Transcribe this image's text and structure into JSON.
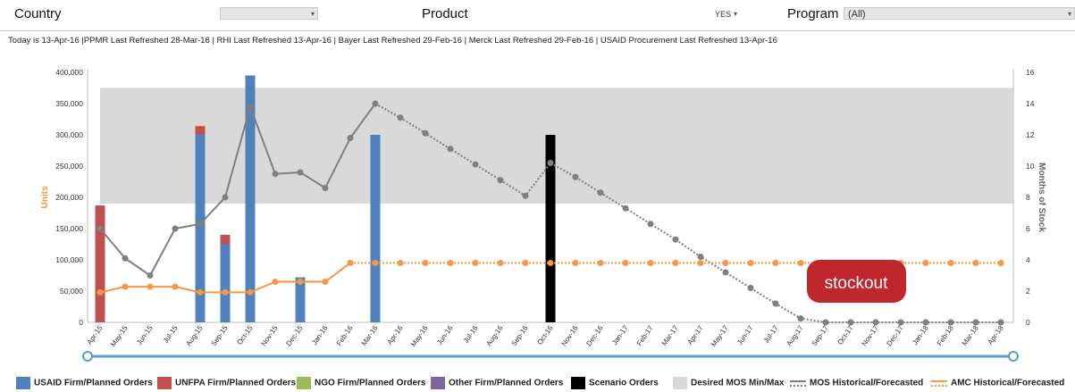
{
  "filters": {
    "country_label": "Country",
    "country_value": "",
    "product_label": "Product",
    "product_value": "YES",
    "program_label": "Program",
    "program_value": "(All)"
  },
  "refresh_text": "Today is 13-Apr-16 |PPMR Last Refreshed 28-Mar-16 | RHI Last Refreshed 13-Apr-16 | Bayer Last Refreshed 29-Feb-16 | Merck Last Refreshed 29-Feb-16 | USAID Procurement Last Refreshed 13-Apr-16",
  "colors": {
    "usaid": "#4f81bd",
    "unfpa": "#c0504d",
    "ngo": "#9bbb59",
    "other": "#8064a2",
    "scenario": "#000000",
    "mos_band": "#d9d9d9",
    "mos_line": "#7f7f7f",
    "amc_line": "#f79646",
    "stockout": "#c0272d",
    "axis_title": "#f79646",
    "scroll": "#5b9bd5"
  },
  "stockout_label": "stockout",
  "legend": [
    {
      "key": "usaid",
      "label": "USAID Firm/Planned Orders",
      "kind": "box"
    },
    {
      "key": "unfpa",
      "label": "UNFPA Firm/Planned Orders",
      "kind": "box"
    },
    {
      "key": "ngo",
      "label": "NGO Firm/Planned Orders",
      "kind": "box"
    },
    {
      "key": "other",
      "label": "Other Firm/Planned Orders",
      "kind": "box"
    },
    {
      "key": "scenario",
      "label": "Scenario Orders",
      "kind": "box"
    },
    {
      "key": "mos_band",
      "label": "Desired MOS Min/Max",
      "kind": "box"
    },
    {
      "key": "mos_line",
      "label": "MOS Historical/Forecasted",
      "kind": "line"
    },
    {
      "key": "amc_line",
      "label": "AMC Historical/Forecasted",
      "kind": "line"
    }
  ],
  "chart_data": {
    "type": "bar",
    "ylabel": "Units",
    "y2label": "Months of Stock",
    "ylim": [
      0,
      400000
    ],
    "y2lim": [
      0,
      16
    ],
    "yticks": [
      0,
      50000,
      100000,
      150000,
      200000,
      250000,
      300000,
      350000,
      400000
    ],
    "ytick_labels": [
      "0",
      "50,000",
      "100,000",
      "150,000",
      "200,000",
      "250,000",
      "300,000",
      "350,000",
      "400,000"
    ],
    "y2ticks": [
      0,
      2,
      4,
      6,
      8,
      10,
      12,
      14,
      16
    ],
    "y2tick_labels": [
      "0",
      "2",
      "4",
      "6",
      "8",
      "10",
      "12",
      "14",
      "16"
    ],
    "categories": [
      "Apr-15",
      "May-15",
      "Jun-15",
      "Jul-15",
      "Aug-15",
      "Sep-15",
      "Oct-15",
      "Nov-15",
      "Dec-15",
      "Jan-16",
      "Feb-16",
      "Mar-16",
      "Apr-16",
      "May-16",
      "Jun-16",
      "Jul-16",
      "Aug-16",
      "Sep-16",
      "Oct-16",
      "Nov-16",
      "Dec-16",
      "Jan-17",
      "Feb-17",
      "Mar-17",
      "Apr-17",
      "May-17",
      "Jun-17",
      "Jul-17",
      "Aug-17",
      "Sep-17",
      "Oct-17",
      "Nov-17",
      "Dec-17",
      "Jan-18",
      "Feb-18",
      "Mar-18",
      "Apr-18"
    ],
    "desired_mos_band": [
      7.6,
      15.0
    ],
    "series": [
      {
        "name": "USAID Firm/Planned Orders",
        "key": "usaid",
        "kind": "bar",
        "values": [
          0,
          0,
          0,
          0,
          300000,
          125000,
          395000,
          0,
          72000,
          0,
          0,
          300000,
          0,
          0,
          0,
          0,
          0,
          0,
          0,
          0,
          0,
          0,
          0,
          0,
          0,
          0,
          0,
          0,
          0,
          0,
          0,
          0,
          0,
          0,
          0,
          0,
          0
        ]
      },
      {
        "name": "UNFPA Firm/Planned Orders",
        "key": "unfpa",
        "kind": "bar",
        "values": [
          187000,
          0,
          0,
          0,
          14000,
          15000,
          0,
          0,
          0,
          0,
          0,
          0,
          0,
          0,
          0,
          0,
          0,
          0,
          0,
          0,
          0,
          0,
          0,
          0,
          0,
          0,
          0,
          0,
          0,
          0,
          0,
          0,
          0,
          0,
          0,
          0,
          0
        ]
      },
      {
        "name": "Scenario Orders",
        "key": "scenario",
        "kind": "bar",
        "values": [
          0,
          0,
          0,
          0,
          0,
          0,
          0,
          0,
          0,
          0,
          0,
          0,
          0,
          0,
          0,
          0,
          0,
          0,
          300000,
          0,
          0,
          0,
          0,
          0,
          0,
          0,
          0,
          0,
          0,
          0,
          0,
          0,
          0,
          0,
          0,
          0,
          0
        ]
      },
      {
        "name": "MOS Historical/Forecasted",
        "key": "mos_line",
        "kind": "line",
        "axis": "y2",
        "historical_points": 12,
        "values": [
          6.0,
          4.1,
          3.0,
          6.0,
          6.3,
          8.0,
          13.8,
          9.5,
          9.6,
          8.6,
          11.8,
          14.0,
          13.1,
          12.1,
          11.1,
          10.1,
          9.1,
          8.1,
          10.2,
          9.3,
          8.3,
          7.3,
          6.3,
          5.3,
          4.2,
          3.2,
          2.2,
          1.2,
          0.25,
          0,
          0,
          0,
          0,
          0,
          0,
          0,
          0
        ]
      },
      {
        "name": "AMC Historical/Forecasted",
        "key": "amc_line",
        "kind": "line",
        "axis": "y",
        "historical_points": 11,
        "values": [
          48000,
          57000,
          57000,
          57000,
          48000,
          48000,
          48000,
          65000,
          65000,
          65000,
          95000,
          95000,
          95000,
          95000,
          95000,
          95000,
          95000,
          95000,
          95000,
          95000,
          95000,
          95000,
          95000,
          95000,
          95000,
          95000,
          95000,
          95000,
          95000,
          95000,
          95000,
          95000,
          95000,
          95000,
          95000,
          95000,
          95000
        ]
      }
    ]
  }
}
